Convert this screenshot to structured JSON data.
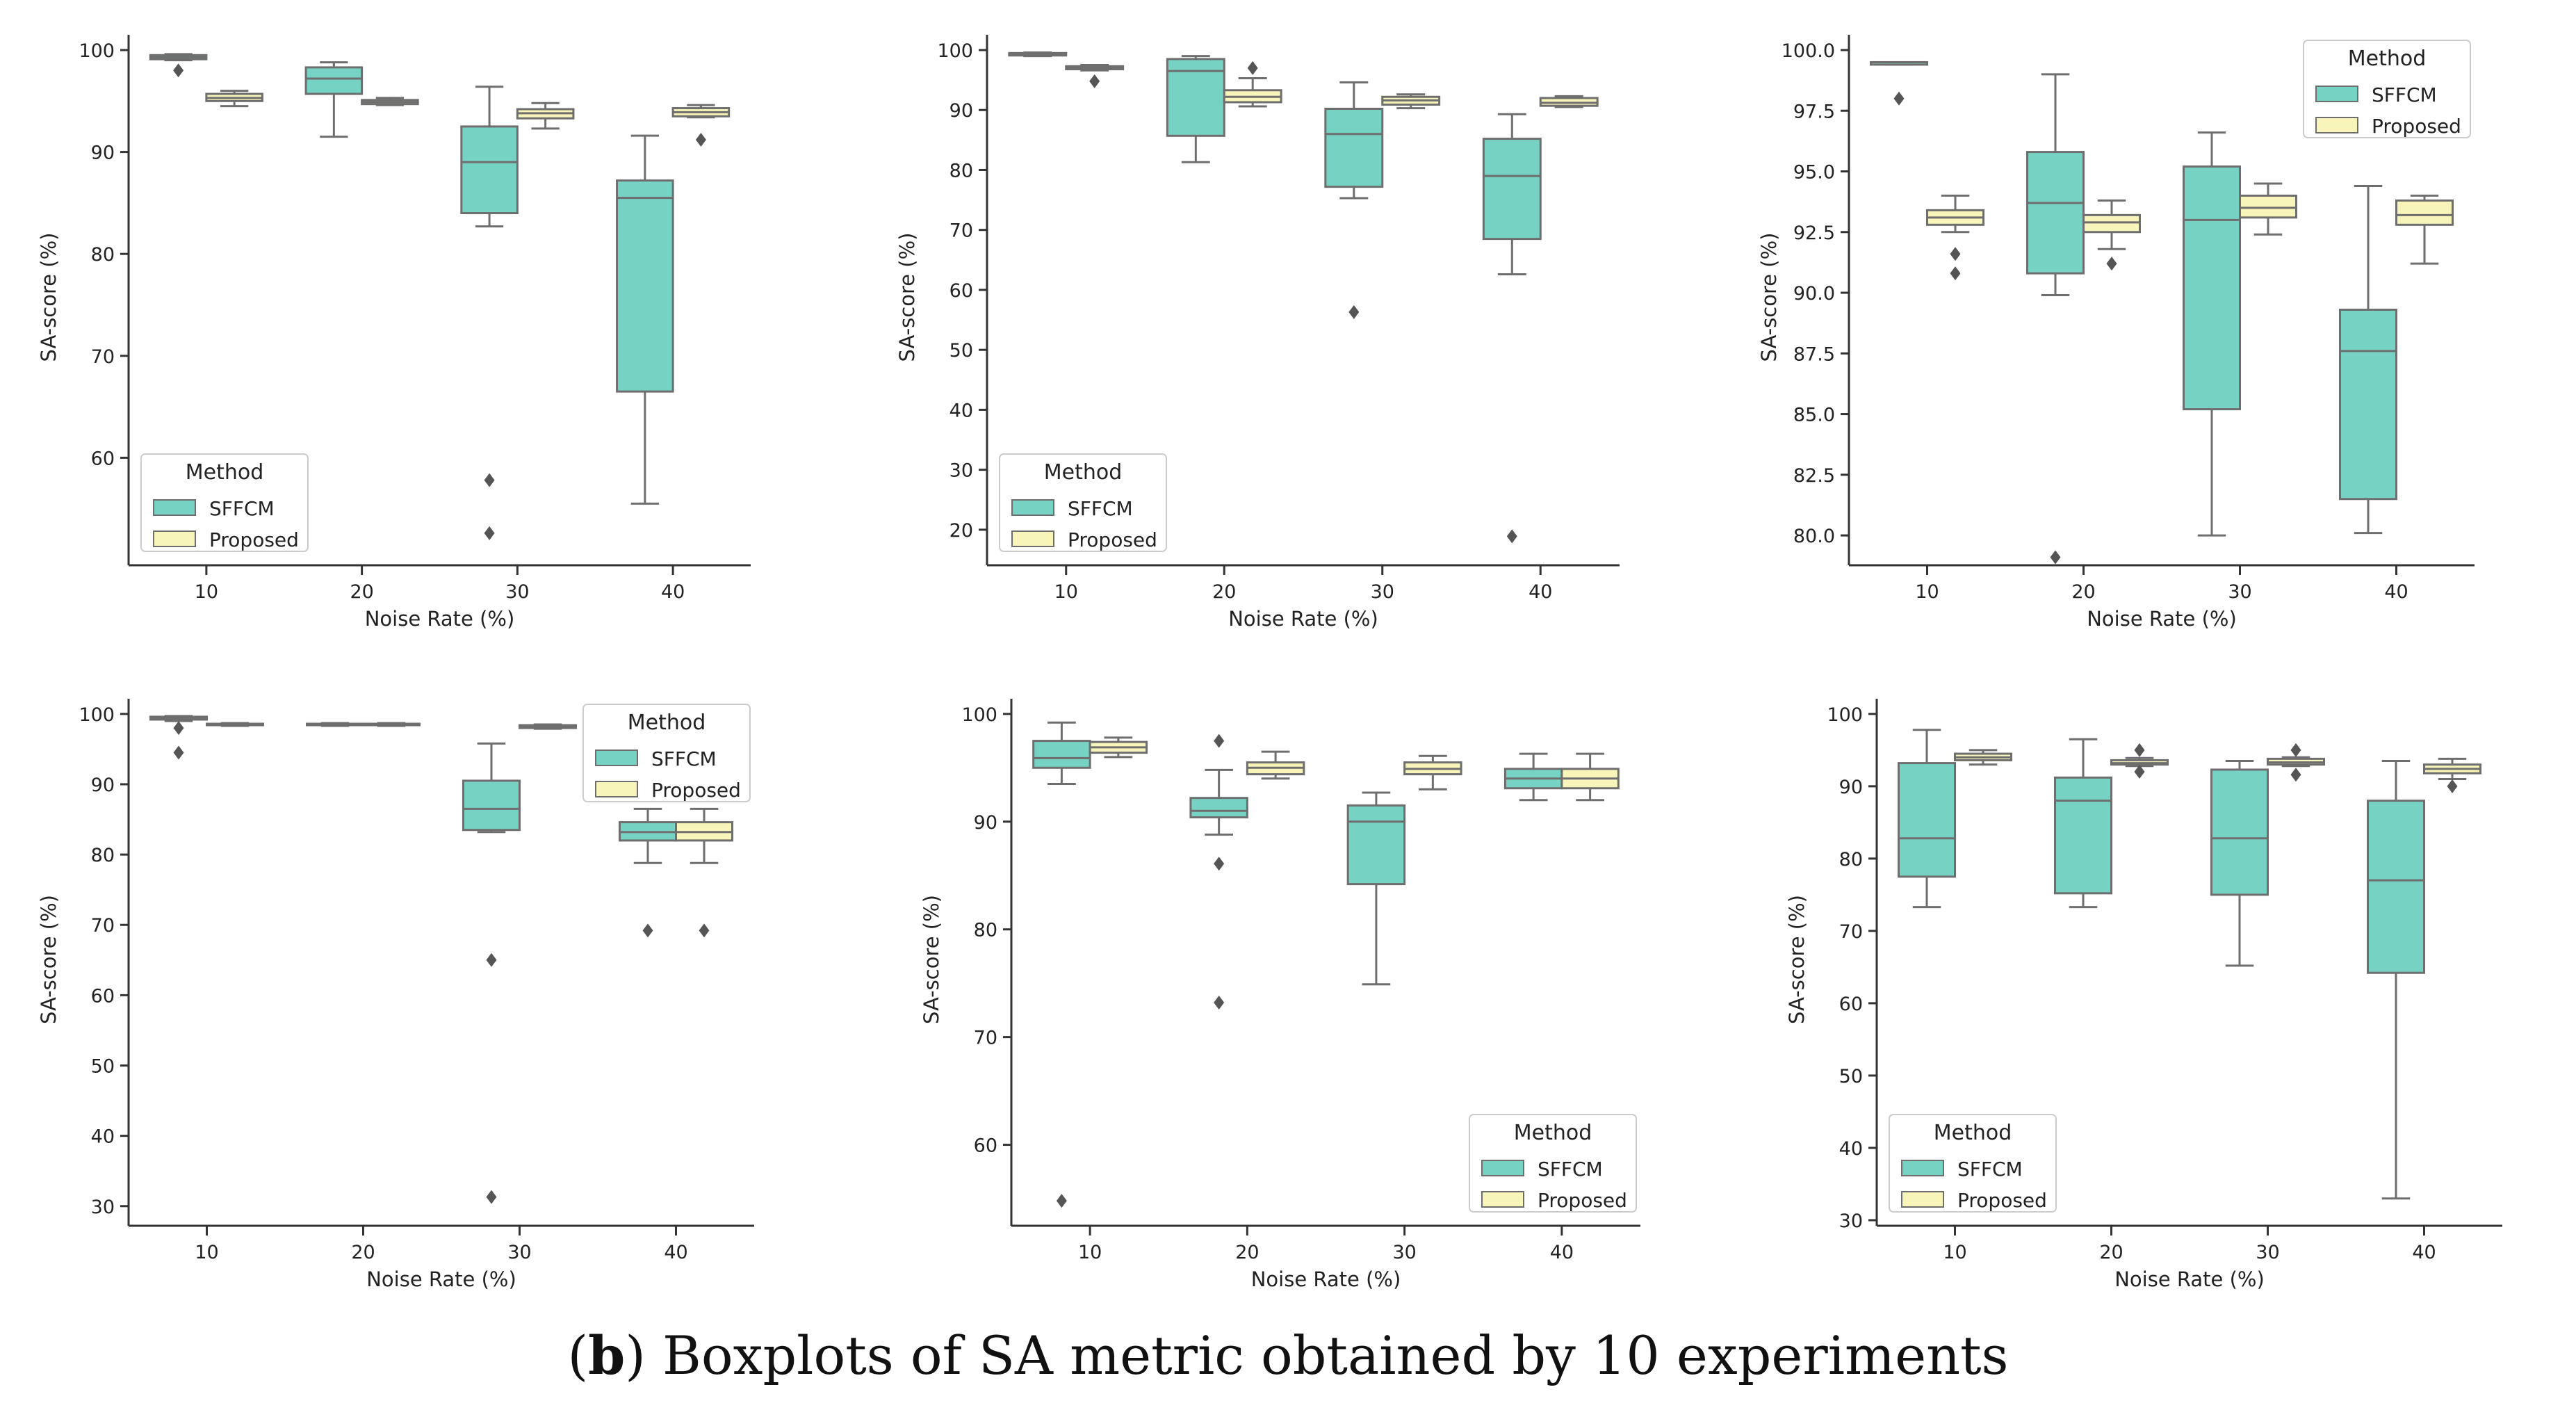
{
  "colors": {
    "sffcm": "#76d3c4",
    "proposed": "#f7f5b9",
    "edge": "#6e6e6e",
    "axis": "#333333",
    "text": "#222222"
  },
  "caption": {
    "open": "(",
    "letter": "b",
    "rest": ") Boxplots of SA metric obtained by 10 experiments"
  },
  "chart_data": [
    {
      "type": "box",
      "xlabel": "Noise Rate (%)",
      "ylabel": "SA-score (%)",
      "categories": [
        "10",
        "20",
        "30",
        "40"
      ],
      "ylim": [
        50,
        100
      ],
      "yticks": [
        60,
        70,
        80,
        90,
        100
      ],
      "ytick_labels": [
        "60",
        "70",
        "80",
        "90",
        "100"
      ],
      "legend": {
        "title": "Method",
        "entries": [
          "SFFCM",
          "Proposed"
        ],
        "loc": "lower left"
      },
      "series": [
        {
          "name": "SFFCM",
          "boxes": [
            {
              "whislo": 99.0,
              "q1": 99.1,
              "med": 99.3,
              "q3": 99.5,
              "whishi": 99.6,
              "fliers": [
                98.0
              ]
            },
            {
              "whislo": 91.5,
              "q1": 95.7,
              "med": 97.2,
              "q3": 98.3,
              "whishi": 98.8,
              "fliers": []
            },
            {
              "whislo": 82.7,
              "q1": 84.0,
              "med": 89.0,
              "q3": 92.5,
              "whishi": 96.4,
              "fliers": [
                57.8,
                52.6
              ]
            },
            {
              "whislo": 55.5,
              "q1": 66.5,
              "med": 85.5,
              "q3": 87.2,
              "whishi": 91.6,
              "fliers": []
            }
          ]
        },
        {
          "name": "Proposed",
          "boxes": [
            {
              "whislo": 94.5,
              "q1": 95.0,
              "med": 95.3,
              "q3": 95.7,
              "whishi": 96.0,
              "fliers": []
            },
            {
              "whislo": 94.6,
              "q1": 94.7,
              "med": 94.9,
              "q3": 95.1,
              "whishi": 95.3,
              "fliers": []
            },
            {
              "whislo": 92.3,
              "q1": 93.3,
              "med": 93.8,
              "q3": 94.2,
              "whishi": 94.8,
              "fliers": []
            },
            {
              "whislo": 93.4,
              "q1": 93.5,
              "med": 93.9,
              "q3": 94.3,
              "whishi": 94.6,
              "fliers": [
                91.2
              ]
            }
          ]
        }
      ]
    },
    {
      "type": "box",
      "xlabel": "Noise Rate (%)",
      "ylabel": "SA-score (%)",
      "categories": [
        "10",
        "20",
        "30",
        "40"
      ],
      "ylim": [
        15,
        100
      ],
      "yticks": [
        20,
        30,
        40,
        50,
        60,
        70,
        80,
        90,
        100
      ],
      "ytick_labels": [
        "20",
        "30",
        "40",
        "50",
        "60",
        "70",
        "80",
        "90",
        "100"
      ],
      "legend": {
        "title": "Method",
        "entries": [
          "SFFCM",
          "Proposed"
        ],
        "loc": "lower left"
      },
      "series": [
        {
          "name": "SFFCM",
          "boxes": [
            {
              "whislo": 99.0,
              "q1": 99.1,
              "med": 99.3,
              "q3": 99.5,
              "whishi": 99.6,
              "fliers": []
            },
            {
              "whislo": 81.3,
              "q1": 85.7,
              "med": 96.5,
              "q3": 98.5,
              "whishi": 99.0,
              "fliers": []
            },
            {
              "whislo": 75.3,
              "q1": 77.2,
              "med": 86.0,
              "q3": 90.2,
              "whishi": 94.6,
              "fliers": [
                56.3
              ]
            },
            {
              "whislo": 62.6,
              "q1": 68.5,
              "med": 79.0,
              "q3": 85.2,
              "whishi": 89.3,
              "fliers": [
                18.9
              ]
            }
          ]
        },
        {
          "name": "Proposed",
          "boxes": [
            {
              "whislo": 96.6,
              "q1": 96.8,
              "med": 97.0,
              "q3": 97.3,
              "whishi": 97.5,
              "fliers": [
                94.8
              ]
            },
            {
              "whislo": 90.6,
              "q1": 91.3,
              "med": 92.2,
              "q3": 93.3,
              "whishi": 95.3,
              "fliers": [
                97.0
              ]
            },
            {
              "whislo": 90.3,
              "q1": 90.9,
              "med": 91.6,
              "q3": 92.2,
              "whishi": 92.6,
              "fliers": []
            },
            {
              "whislo": 90.5,
              "q1": 90.7,
              "med": 91.2,
              "q3": 92.0,
              "whishi": 92.3,
              "fliers": []
            }
          ]
        }
      ]
    },
    {
      "type": "box",
      "xlabel": "Noise Rate (%)",
      "ylabel": "SA-score (%)",
      "categories": [
        "10",
        "20",
        "30",
        "40"
      ],
      "ylim": [
        79,
        100
      ],
      "yticks": [
        80,
        82.5,
        85,
        87.5,
        90,
        92.5,
        95,
        97.5,
        100
      ],
      "ytick_labels": [
        "80.0",
        "82.5",
        "85.0",
        "87.5",
        "90.0",
        "92.5",
        "95.0",
        "97.5",
        "100.0"
      ],
      "legend": {
        "title": "Method",
        "entries": [
          "SFFCM",
          "Proposed"
        ],
        "loc": "upper right"
      },
      "series": [
        {
          "name": "SFFCM",
          "boxes": [
            {
              "whislo": 99.4,
              "q1": 99.4,
              "med": 99.5,
              "q3": 99.5,
              "whishi": 99.5,
              "fliers": [
                98.0
              ]
            },
            {
              "whislo": 89.9,
              "q1": 90.8,
              "med": 93.7,
              "q3": 95.8,
              "whishi": 99.0,
              "fliers": [
                79.1
              ]
            },
            {
              "whislo": 80.0,
              "q1": 85.2,
              "med": 93.0,
              "q3": 95.2,
              "whishi": 96.6,
              "fliers": []
            },
            {
              "whislo": 80.1,
              "q1": 81.5,
              "med": 87.6,
              "q3": 89.3,
              "whishi": 94.4,
              "fliers": []
            }
          ]
        },
        {
          "name": "Proposed",
          "boxes": [
            {
              "whislo": 92.5,
              "q1": 92.8,
              "med": 93.1,
              "q3": 93.4,
              "whishi": 94.0,
              "fliers": [
                91.6,
                90.8
              ]
            },
            {
              "whislo": 91.8,
              "q1": 92.5,
              "med": 92.9,
              "q3": 93.2,
              "whishi": 93.8,
              "fliers": [
                91.2
              ]
            },
            {
              "whislo": 92.4,
              "q1": 93.1,
              "med": 93.5,
              "q3": 94.0,
              "whishi": 94.5,
              "fliers": []
            },
            {
              "whislo": 91.2,
              "q1": 92.8,
              "med": 93.2,
              "q3": 93.8,
              "whishi": 94.0,
              "fliers": []
            }
          ]
        }
      ]
    },
    {
      "type": "box",
      "xlabel": "Noise Rate (%)",
      "ylabel": "SA-score (%)",
      "categories": [
        "10",
        "20",
        "30",
        "40"
      ],
      "ylim": [
        28,
        100
      ],
      "yticks": [
        30,
        40,
        50,
        60,
        70,
        80,
        90,
        100
      ],
      "ytick_labels": [
        "30",
        "40",
        "50",
        "60",
        "70",
        "80",
        "90",
        "100"
      ],
      "legend": {
        "title": "Method",
        "entries": [
          "SFFCM",
          "Proposed"
        ],
        "loc": "upper right"
      },
      "series": [
        {
          "name": "SFFCM",
          "boxes": [
            {
              "whislo": 99.0,
              "q1": 99.2,
              "med": 99.4,
              "q3": 99.6,
              "whishi": 99.7,
              "fliers": [
                98.0,
                94.5
              ]
            },
            {
              "whislo": 98.3,
              "q1": 98.4,
              "med": 98.5,
              "q3": 98.6,
              "whishi": 98.7,
              "fliers": []
            },
            {
              "whislo": 83.2,
              "q1": 83.5,
              "med": 86.5,
              "q3": 90.5,
              "whishi": 95.8,
              "fliers": [
                65.0,
                31.3
              ]
            },
            {
              "whislo": 78.8,
              "q1": 82.0,
              "med": 83.2,
              "q3": 84.6,
              "whishi": 86.5,
              "fliers": [
                69.2
              ]
            }
          ]
        },
        {
          "name": "Proposed",
          "boxes": [
            {
              "whislo": 98.3,
              "q1": 98.4,
              "med": 98.5,
              "q3": 98.6,
              "whishi": 98.7,
              "fliers": []
            },
            {
              "whislo": 98.3,
              "q1": 98.4,
              "med": 98.5,
              "q3": 98.6,
              "whishi": 98.7,
              "fliers": []
            },
            {
              "whislo": 97.9,
              "q1": 98.0,
              "med": 98.2,
              "q3": 98.4,
              "whishi": 98.5,
              "fliers": []
            },
            {
              "whislo": 78.8,
              "q1": 82.0,
              "med": 83.2,
              "q3": 84.6,
              "whishi": 86.5,
              "fliers": [
                69.2
              ]
            }
          ]
        }
      ]
    },
    {
      "type": "box",
      "xlabel": "Noise Rate (%)",
      "ylabel": "SA-score (%)",
      "categories": [
        "10",
        "20",
        "30",
        "40"
      ],
      "ylim": [
        53,
        100
      ],
      "yticks": [
        60,
        70,
        80,
        90,
        100
      ],
      "ytick_labels": [
        "60",
        "70",
        "80",
        "90",
        "100"
      ],
      "legend": {
        "title": "Method",
        "entries": [
          "SFFCM",
          "Proposed"
        ],
        "loc": "lower right"
      },
      "series": [
        {
          "name": "SFFCM",
          "boxes": [
            {
              "whislo": 93.5,
              "q1": 95.0,
              "med": 95.9,
              "q3": 97.5,
              "whishi": 99.2,
              "fliers": [
                54.8
              ]
            },
            {
              "whislo": 88.8,
              "q1": 90.4,
              "med": 91.0,
              "q3": 92.2,
              "whishi": 94.8,
              "fliers": [
                97.5,
                86.1,
                73.2
              ]
            },
            {
              "whislo": 74.9,
              "q1": 84.2,
              "med": 90.0,
              "q3": 91.5,
              "whishi": 92.7,
              "fliers": []
            },
            {
              "whislo": 92.0,
              "q1": 93.1,
              "med": 94.0,
              "q3": 94.9,
              "whishi": 96.3,
              "fliers": []
            }
          ]
        },
        {
          "name": "Proposed",
          "boxes": [
            {
              "whislo": 96.0,
              "q1": 96.4,
              "med": 96.9,
              "q3": 97.4,
              "whishi": 97.8,
              "fliers": []
            },
            {
              "whislo": 94.0,
              "q1": 94.4,
              "med": 95.0,
              "q3": 95.5,
              "whishi": 96.5,
              "fliers": []
            },
            {
              "whislo": 93.0,
              "q1": 94.4,
              "med": 94.9,
              "q3": 95.5,
              "whishi": 96.1,
              "fliers": []
            },
            {
              "whislo": 92.0,
              "q1": 93.1,
              "med": 94.0,
              "q3": 94.9,
              "whishi": 96.3,
              "fliers": []
            }
          ]
        }
      ]
    },
    {
      "type": "box",
      "xlabel": "Noise Rate (%)",
      "ylabel": "SA-score (%)",
      "categories": [
        "10",
        "20",
        "30",
        "40"
      ],
      "ylim": [
        30,
        100
      ],
      "yticks": [
        30,
        40,
        50,
        60,
        70,
        80,
        90,
        100
      ],
      "ytick_labels": [
        "30",
        "40",
        "50",
        "60",
        "70",
        "80",
        "90",
        "100"
      ],
      "legend": {
        "title": "Method",
        "entries": [
          "SFFCM",
          "Proposed"
        ],
        "loc": "lower left"
      },
      "series": [
        {
          "name": "SFFCM",
          "boxes": [
            {
              "whislo": 73.3,
              "q1": 77.5,
              "med": 82.8,
              "q3": 93.2,
              "whishi": 97.8,
              "fliers": []
            },
            {
              "whislo": 73.3,
              "q1": 75.2,
              "med": 88.0,
              "q3": 91.2,
              "whishi": 96.5,
              "fliers": []
            },
            {
              "whislo": 65.2,
              "q1": 75.0,
              "med": 82.8,
              "q3": 92.3,
              "whishi": 93.5,
              "fliers": []
            },
            {
              "whislo": 33.0,
              "q1": 64.2,
              "med": 77.0,
              "q3": 88.0,
              "whishi": 93.5,
              "fliers": []
            }
          ]
        },
        {
          "name": "Proposed",
          "boxes": [
            {
              "whislo": 93.0,
              "q1": 93.6,
              "med": 94.0,
              "q3": 94.5,
              "whishi": 95.0,
              "fliers": []
            },
            {
              "whislo": 92.8,
              "q1": 93.0,
              "med": 93.2,
              "q3": 93.6,
              "whishi": 93.9,
              "fliers": [
                95.0,
                92.0
              ]
            },
            {
              "whislo": 92.8,
              "q1": 93.0,
              "med": 93.3,
              "q3": 93.8,
              "whishi": 94.0,
              "fliers": [
                95.0,
                91.6
              ]
            },
            {
              "whislo": 91.0,
              "q1": 91.8,
              "med": 92.4,
              "q3": 93.0,
              "whishi": 93.8,
              "fliers": [
                90.0
              ]
            }
          ]
        }
      ]
    }
  ]
}
